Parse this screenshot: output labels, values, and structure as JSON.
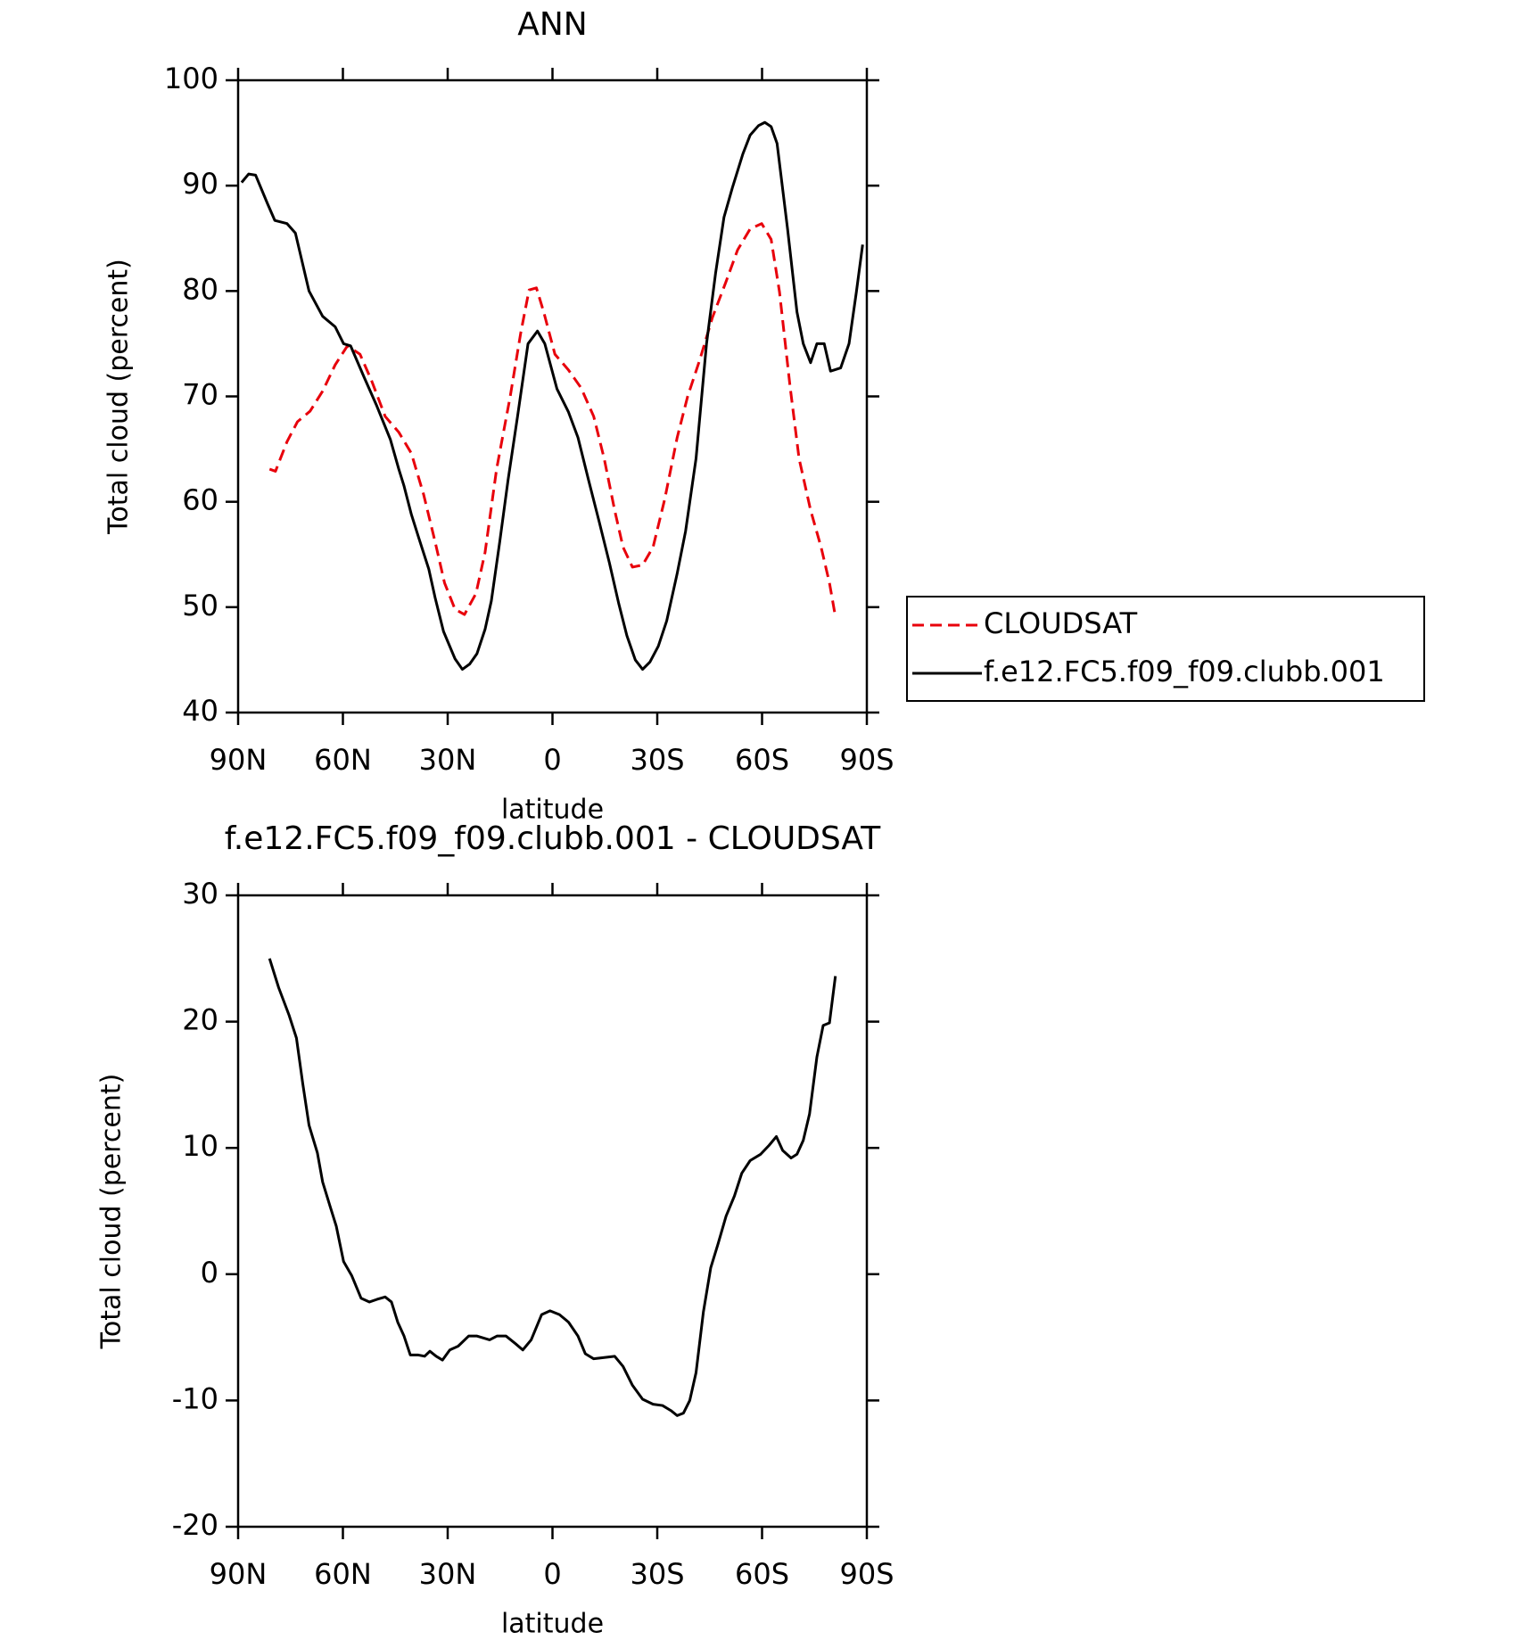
{
  "chart_data": [
    {
      "type": "line",
      "title": "ANN",
      "xlabel": "latitude",
      "ylabel": "Total cloud (percent)",
      "xlim": [
        90,
        -90
      ],
      "xticks": [
        {
          "value": 90,
          "label": "90N"
        },
        {
          "value": 60,
          "label": "60N"
        },
        {
          "value": 30,
          "label": "30N"
        },
        0,
        {
          "value": -30,
          "label": "30S"
        },
        {
          "value": -60,
          "label": "60S"
        },
        {
          "value": -90,
          "label": "90S"
        }
      ],
      "ylim": [
        40,
        100
      ],
      "yticks": [
        40,
        50,
        60,
        70,
        80,
        90,
        100
      ],
      "legend": "right",
      "series": [
        {
          "name": "CLOUDSAT",
          "color": "#e8000b",
          "dashed": true,
          "x": [
            81,
            79.3,
            76,
            73,
            69.4,
            65.8,
            62.2,
            58.7,
            55.1,
            51.8,
            47.9,
            44,
            40.4,
            36.9,
            33.6,
            30.9,
            27.9,
            25.2,
            21.9,
            19.3,
            16,
            12.1,
            9.1,
            6.7,
            4.6,
            2.5,
            -0.7,
            -4.6,
            -8.2,
            -11.8,
            -14.8,
            -17.8,
            -20.2,
            -22.9,
            -25.8,
            -28.8,
            -32.1,
            -35.7,
            -38.7,
            -42.2,
            -45.8,
            -49.7,
            -53,
            -56.6,
            -59.9,
            -62.6,
            -65,
            -68,
            -70.6,
            -73.9,
            -76.9,
            -79.3,
            -81
          ],
          "values": [
            63.1,
            62.9,
            65.7,
            67.6,
            68.6,
            70.5,
            73.0,
            74.8,
            74.0,
            71.5,
            68.1,
            66.6,
            64.6,
            60.7,
            56.2,
            52.3,
            49.8,
            49.3,
            51.3,
            55.2,
            63.1,
            70.0,
            76.0,
            80.1,
            80.3,
            78.0,
            74.0,
            72.5,
            70.8,
            68.1,
            64.1,
            59.2,
            55.7,
            53.8,
            54.0,
            55.7,
            60.2,
            66.1,
            70.0,
            73.5,
            77.5,
            80.9,
            83.9,
            85.9,
            86.4,
            84.9,
            79.9,
            71.0,
            64.1,
            59.2,
            55.7,
            52.3,
            49.1
          ]
        },
        {
          "name": "f.e12.FC5.f09_f09.clubb.001",
          "color": "#000000",
          "dashed": false,
          "x": [
            89,
            87,
            85,
            81.6,
            79.5,
            76,
            73.6,
            69.7,
            65.8,
            62.2,
            59.8,
            57.8,
            53.9,
            50.3,
            46.4,
            44,
            42.5,
            40.4,
            38.4,
            35.4,
            33.6,
            31.2,
            27.9,
            25.8,
            23.7,
            21.6,
            19.3,
            17.5,
            15.1,
            12.7,
            10,
            7,
            4.3,
            2.2,
            -1.3,
            -4.6,
            -7.3,
            -10.3,
            -13.3,
            -16.3,
            -19,
            -21.3,
            -23.7,
            -25.8,
            -27.9,
            -30.3,
            -32.7,
            -35.7,
            -38.1,
            -41.1,
            -44.1,
            -46.7,
            -49.1,
            -51.5,
            -54.5,
            -56.6,
            -59,
            -60.8,
            -62.6,
            -64.3,
            -67.3,
            -70,
            -71.8,
            -73.9,
            -75.7,
            -77.8,
            -79.6,
            -82.5,
            -84.9,
            -87,
            -88.8
          ],
          "values": [
            90.3,
            91.1,
            91.0,
            88.3,
            86.7,
            86.4,
            85.5,
            80.0,
            77.6,
            76.6,
            75.0,
            74.8,
            71.8,
            69.1,
            65.9,
            63.1,
            61.5,
            58.8,
            56.7,
            53.6,
            50.9,
            47.7,
            45.1,
            44.1,
            44.6,
            45.6,
            47.9,
            50.6,
            56.2,
            62.1,
            68.1,
            75.0,
            76.2,
            75.0,
            70.7,
            68.5,
            66.1,
            62.1,
            58.2,
            54.2,
            50.3,
            47.3,
            45.0,
            44.1,
            44.8,
            46.3,
            48.7,
            53.2,
            57.2,
            64.1,
            75.0,
            81.7,
            87.0,
            89.8,
            93.0,
            94.8,
            95.7,
            96.0,
            95.6,
            94.0,
            85.9,
            78.0,
            75.0,
            73.2,
            75.0,
            75.0,
            72.4,
            72.7,
            75.0,
            79.9,
            84.4
          ]
        }
      ]
    },
    {
      "type": "line",
      "title": "f.e12.FC5.f09_f09.clubb.001 - CLOUDSAT",
      "xlabel": "latitude",
      "ylabel": "Total cloud (percent)",
      "xlim": [
        90,
        -90
      ],
      "xticks": [
        {
          "value": 90,
          "label": "90N"
        },
        {
          "value": 60,
          "label": "60N"
        },
        {
          "value": 30,
          "label": "30N"
        },
        0,
        {
          "value": -30,
          "label": "30S"
        },
        {
          "value": -60,
          "label": "60S"
        },
        {
          "value": -90,
          "label": "90S"
        }
      ],
      "ylim": [
        -20,
        30
      ],
      "yticks": [
        -20,
        -10,
        0,
        10,
        20,
        30
      ],
      "color": "#000000",
      "x": [
        81,
        78.4,
        75.4,
        73.3,
        71.5,
        69.7,
        67.3,
        65.8,
        63.7,
        61.9,
        59.8,
        57.5,
        54.8,
        52.4,
        50.3,
        47.9,
        46.1,
        44.3,
        42.5,
        40.7,
        38.4,
        36.6,
        35.1,
        33.3,
        31.5,
        29.4,
        27,
        24,
        21.6,
        18,
        15.9,
        13.3,
        10.6,
        8.5,
        6.1,
        3.1,
        0.7,
        -2,
        -4.6,
        -7.3,
        -9.4,
        -11.8,
        -14.8,
        -17.8,
        -20.2,
        -22.9,
        -25.8,
        -28.8,
        -31.5,
        -33.9,
        -35.7,
        -37.5,
        -39.3,
        -41.1,
        -43.2,
        -45.3,
        -47.4,
        -49.7,
        -52.1,
        -54.2,
        -56.6,
        -59.6,
        -62,
        -64.1,
        -65.9,
        -68.3,
        -70,
        -71.8,
        -73.6,
        -75.7,
        -77.5,
        -79.3,
        -81
      ],
      "values": [
        25.0,
        22.7,
        20.5,
        18.7,
        15.1,
        11.8,
        9.6,
        7.3,
        5.4,
        3.8,
        1.0,
        -0.1,
        -1.9,
        -2.2,
        -2.0,
        -1.8,
        -2.2,
        -3.8,
        -4.9,
        -6.4,
        -6.4,
        -6.5,
        -6.1,
        -6.5,
        -6.8,
        -6.0,
        -5.7,
        -4.9,
        -4.9,
        -5.2,
        -4.9,
        -4.9,
        -5.5,
        -6.0,
        -5.2,
        -3.2,
        -2.9,
        -3.2,
        -3.8,
        -4.9,
        -6.3,
        -6.7,
        -6.6,
        -6.5,
        -7.3,
        -8.8,
        -9.9,
        -10.3,
        -10.4,
        -10.8,
        -11.2,
        -11.0,
        -10.0,
        -7.8,
        -3.0,
        0.5,
        2.4,
        4.6,
        6.2,
        8.0,
        9.0,
        9.5,
        10.2,
        10.9,
        9.8,
        9.2,
        9.5,
        10.6,
        12.7,
        17.2,
        19.7,
        19.9,
        23.6
      ]
    }
  ]
}
